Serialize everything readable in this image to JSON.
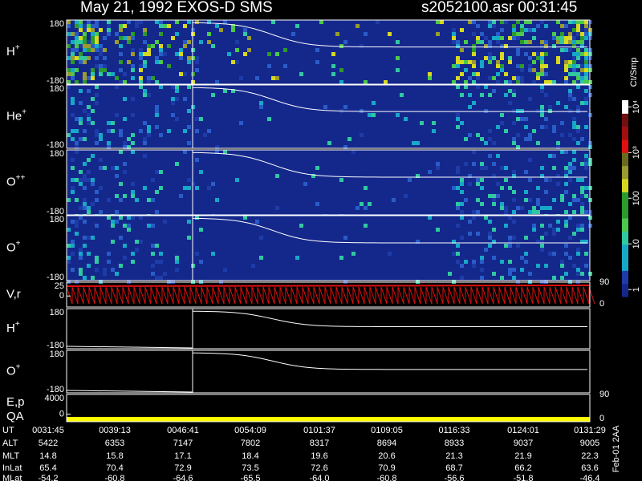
{
  "chart_data": {
    "type": "spectrogram",
    "title": "May 21, 1992   EXOS-D SMS",
    "subtitle": "s2052100.asr  00:31:45",
    "panels": [
      {
        "label": "H",
        "label_sup": "+",
        "ylim": [
          -180,
          180
        ],
        "yticks": [
          180,
          -180
        ]
      },
      {
        "label": "He",
        "label_sup": "+",
        "ylim": [
          -180,
          180
        ],
        "yticks": [
          180,
          -180
        ]
      },
      {
        "label": "O",
        "label_sup": "++",
        "ylim": [
          -180,
          180
        ],
        "yticks": [
          180,
          -180
        ]
      },
      {
        "label": "O",
        "label_sup": "+",
        "ylim": [
          -180,
          180
        ],
        "yticks": [
          180,
          -180
        ]
      },
      {
        "label": "V,r",
        "ylim": [
          -20,
          25
        ],
        "yticks": [
          25,
          0
        ],
        "y2lim": [
          0,
          90
        ],
        "y2ticks": [
          90,
          0
        ]
      },
      {
        "label": "H",
        "label_sup": "+",
        "ylim": [
          -180,
          180
        ],
        "yticks": [
          180,
          -180
        ]
      },
      {
        "label": "O",
        "label_sup": "+",
        "ylim": [
          -180,
          180
        ],
        "yticks": [
          180,
          -180
        ]
      },
      {
        "label": "E,p",
        "label2": "QA",
        "ylim": [
          -1500,
          4000
        ],
        "yticks": [
          4000,
          0
        ],
        "y2lim": [
          0,
          90
        ],
        "y2ticks": [
          90,
          0
        ]
      }
    ],
    "colorbar": {
      "label": "Ct/Smp",
      "log_scale": true,
      "ylim": [
        0.7,
        14000
      ],
      "ticks": [
        {
          "value": 1,
          "label": "1"
        },
        {
          "value": 10,
          "label": "10"
        },
        {
          "value": 100,
          "label": "100"
        },
        {
          "value": 1000,
          "label": "10³"
        },
        {
          "value": 10000,
          "label": "10⁴"
        }
      ]
    },
    "table": {
      "rows": [
        {
          "label": "UT",
          "values": [
            "0031:45",
            "0039:13",
            "0046:41",
            "0054:09",
            "0101:37",
            "0109:05",
            "0116:33",
            "0124:01",
            "0131:29"
          ]
        },
        {
          "label": "ALT",
          "values": [
            "5422",
            "6353",
            "7147",
            "7802",
            "8317",
            "8694",
            "8933",
            "9037",
            "9005"
          ]
        },
        {
          "label": "MLT",
          "values": [
            "14.8",
            "15.8",
            "17.1",
            "18.4",
            "19.6",
            "20.6",
            "21.3",
            "21.9",
            "22.3"
          ]
        },
        {
          "label": "InLat",
          "values": [
            "65.4",
            "70.4",
            "72.9",
            "73.5",
            "72.6",
            "70.9",
            "68.7",
            "66.2",
            "63.6"
          ]
        },
        {
          "label": "MLat",
          "values": [
            "-54.2",
            "-60.8",
            "-64.6",
            "-65.5",
            "-64.0",
            "-60.8",
            "-56.6",
            "-51.8",
            "-46.4"
          ]
        }
      ]
    },
    "footnote": "Feb-01 2AA"
  }
}
